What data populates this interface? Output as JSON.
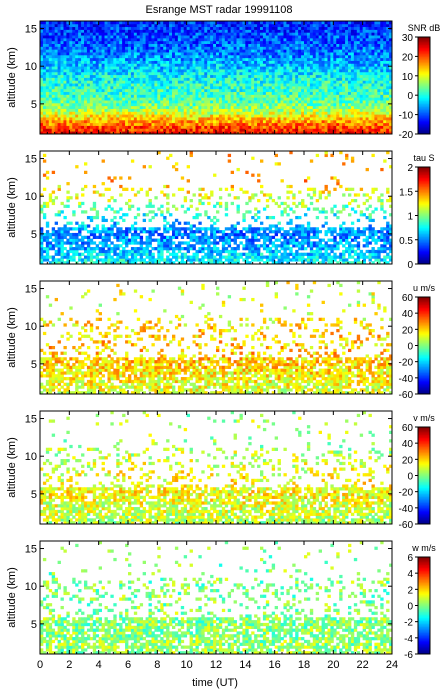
{
  "title": "Esrange MST radar 19991108",
  "x_axis": {
    "label": "time (UT)",
    "range": [
      0,
      24
    ],
    "ticks": [
      0,
      2,
      4,
      6,
      8,
      10,
      12,
      14,
      16,
      18,
      20,
      22,
      24
    ]
  },
  "colormap": "jet",
  "chart_data": [
    {
      "type": "heatmap",
      "quantity": "SNR",
      "colorbar_label": "SNR dB",
      "ylabel": "altitude (km)",
      "xlim": [
        0,
        24
      ],
      "ylim": [
        1,
        16
      ],
      "y_ticks": [
        5,
        10,
        15
      ],
      "clim": [
        -20,
        30
      ],
      "cbar_ticks": [
        -20,
        -10,
        0,
        10,
        20,
        30
      ],
      "profile": {
        "altitudes_km": [
          1,
          2,
          3,
          4,
          5,
          6,
          8,
          10,
          12,
          14,
          16
        ],
        "values": [
          24,
          20,
          14,
          8,
          4,
          2,
          0,
          -4,
          -8,
          -10,
          -12
        ]
      },
      "coverage": "full"
    },
    {
      "type": "heatmap",
      "quantity": "tau",
      "colorbar_label": "tau S",
      "ylabel": "altitude (km)",
      "xlim": [
        0,
        24
      ],
      "ylim": [
        1,
        16
      ],
      "y_ticks": [
        5,
        10,
        15
      ],
      "clim": [
        0,
        2
      ],
      "cbar_ticks": [
        0,
        0.5,
        1,
        1.5,
        2
      ],
      "profile": {
        "altitudes_km": [
          1,
          3,
          5,
          7,
          10,
          12
        ],
        "values": [
          0.8,
          0.6,
          0.5,
          0.7,
          1.2,
          1.4
        ]
      },
      "coverage": "sparse"
    },
    {
      "type": "heatmap",
      "quantity": "u",
      "colorbar_label": "u m/s",
      "ylabel": "altitude (km)",
      "xlim": [
        0,
        24
      ],
      "ylim": [
        1,
        16
      ],
      "y_ticks": [
        5,
        10,
        15
      ],
      "clim": [
        -60,
        60
      ],
      "cbar_ticks": [
        -60,
        -40,
        -20,
        0,
        20,
        40,
        60
      ],
      "profile": {
        "altitudes_km": [
          1,
          3,
          5,
          7,
          10,
          12
        ],
        "values": [
          10,
          15,
          20,
          22,
          18,
          12
        ]
      },
      "coverage": "sparse"
    },
    {
      "type": "heatmap",
      "quantity": "v",
      "colorbar_label": "v m/s",
      "ylabel": "altitude (km)",
      "xlim": [
        0,
        24
      ],
      "ylim": [
        1,
        16
      ],
      "y_ticks": [
        5,
        10,
        15
      ],
      "clim": [
        -60,
        60
      ],
      "cbar_ticks": [
        -60,
        -40,
        -20,
        0,
        20,
        40,
        60
      ],
      "profile": {
        "altitudes_km": [
          1,
          3,
          5,
          7,
          10,
          12
        ],
        "values": [
          5,
          10,
          15,
          14,
          8,
          4
        ]
      },
      "coverage": "sparse"
    },
    {
      "type": "heatmap",
      "quantity": "w",
      "colorbar_label": "w m/s",
      "ylabel": "altitude (km)",
      "xlim": [
        0,
        24
      ],
      "ylim": [
        1,
        16
      ],
      "y_ticks": [
        5,
        10,
        15
      ],
      "clim": [
        -6,
        6
      ],
      "cbar_ticks": [
        -6,
        -4,
        -2,
        0,
        2,
        4,
        6
      ],
      "profile": {
        "altitudes_km": [
          1,
          3,
          5,
          7,
          10,
          12
        ],
        "values": [
          0.3,
          0.2,
          0.1,
          0.1,
          0,
          0
        ]
      },
      "coverage": "sparse"
    }
  ]
}
